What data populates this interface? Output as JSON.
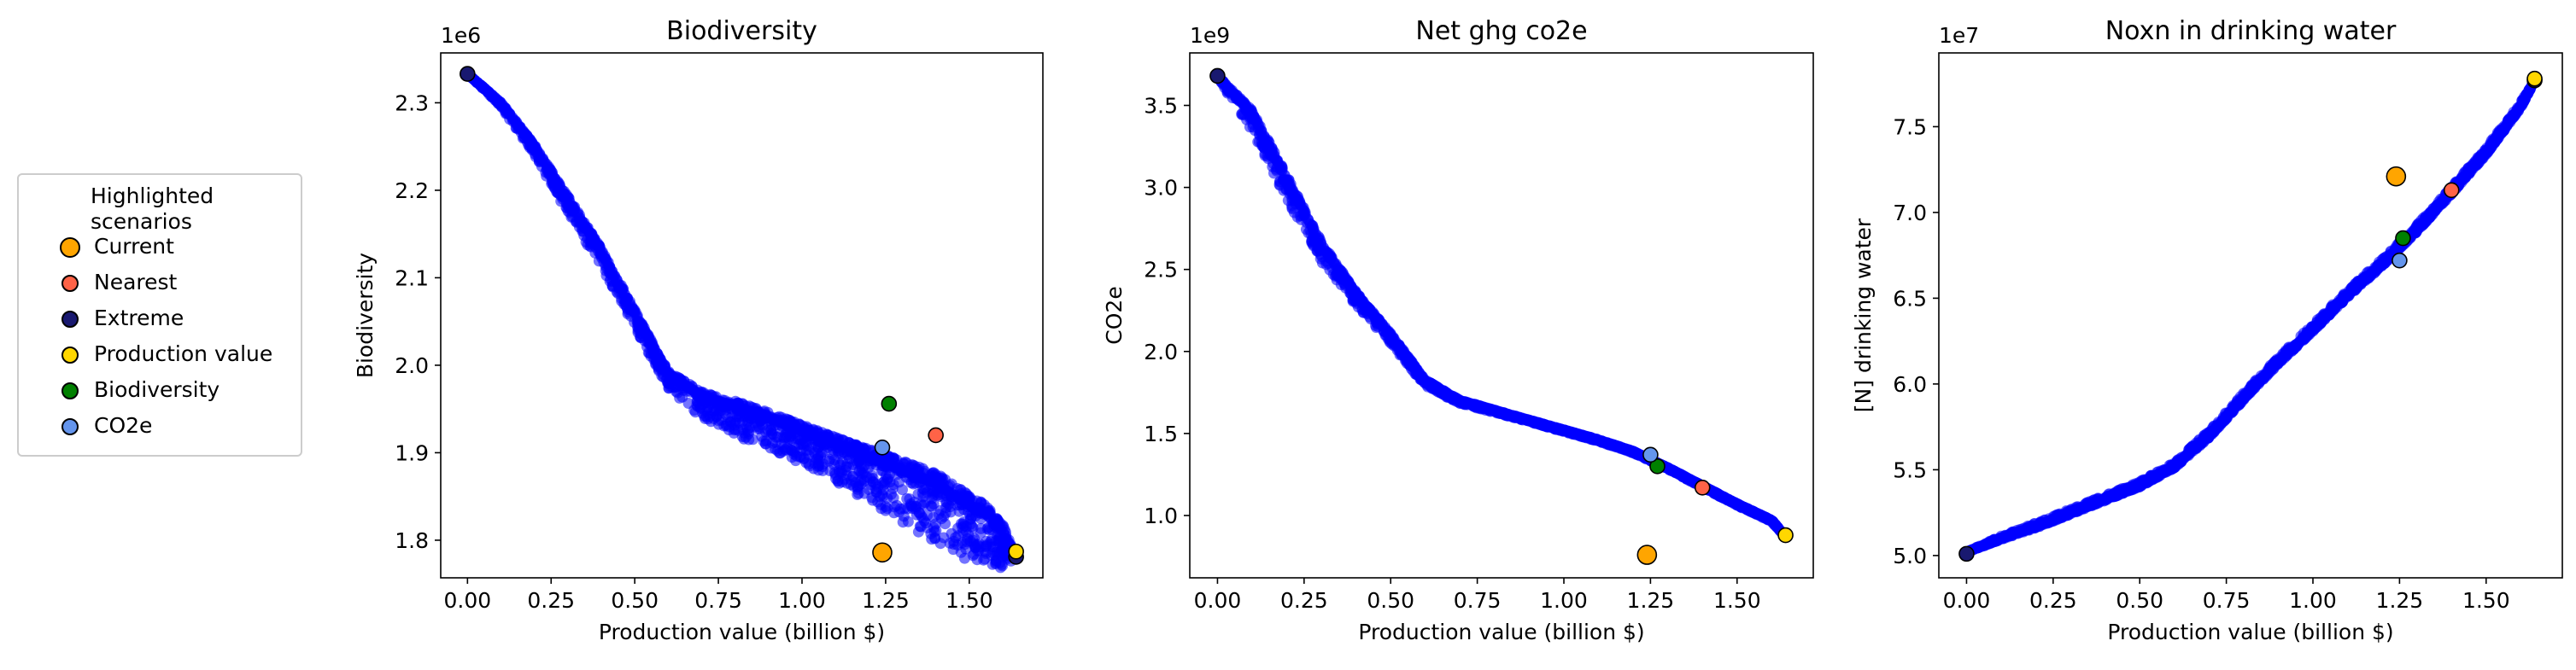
{
  "legend": {
    "title_line1": "Highlighted",
    "title_line2": "scenarios",
    "items": [
      {
        "label": "Current",
        "color": "#ffa500",
        "size": "large"
      },
      {
        "label": "Nearest",
        "color": "#ff6347",
        "size": "small"
      },
      {
        "label": "Extreme",
        "color": "#191970",
        "size": "small"
      },
      {
        "label": "Production value",
        "color": "#ffd700",
        "size": "small"
      },
      {
        "label": "Biodiversity",
        "color": "#008000",
        "size": "small"
      },
      {
        "label": "CO2e",
        "color": "#6495ed",
        "size": "small"
      }
    ]
  },
  "cloud_color": "#0000ff",
  "chart_data": [
    {
      "type": "scatter",
      "title": "Biodiversity",
      "xlabel": "Production value (billion $)",
      "ylabel": "Biodiversity",
      "offset_label": "1e6",
      "xlim": [
        -0.08,
        1.72
      ],
      "ylim": [
        1.757,
        2.357
      ],
      "xticks": [
        0.0,
        0.25,
        0.5,
        0.75,
        1.0,
        1.25,
        1.5
      ],
      "xtick_labels": [
        "0.00",
        "0.25",
        "0.50",
        "0.75",
        "1.00",
        "1.25",
        "1.50"
      ],
      "yticks": [
        1.8,
        1.9,
        2.0,
        2.1,
        2.2,
        2.3
      ],
      "ytick_labels": [
        "1.8",
        "1.9",
        "2.0",
        "2.1",
        "2.2",
        "2.3"
      ],
      "frontier": [
        [
          0.0,
          2.333
        ],
        [
          0.1,
          2.3
        ],
        [
          0.2,
          2.25
        ],
        [
          0.3,
          2.19
        ],
        [
          0.4,
          2.13
        ],
        [
          0.5,
          2.06
        ],
        [
          0.6,
          1.99
        ],
        [
          0.7,
          1.965
        ],
        [
          0.8,
          1.953
        ],
        [
          0.9,
          1.94
        ],
        [
          1.0,
          1.925
        ],
        [
          1.1,
          1.91
        ],
        [
          1.2,
          1.895
        ],
        [
          1.3,
          1.88
        ],
        [
          1.4,
          1.865
        ],
        [
          1.5,
          1.84
        ],
        [
          1.55,
          1.83
        ],
        [
          1.6,
          1.81
        ],
        [
          1.64,
          1.78
        ]
      ],
      "band": [
        0.0,
        0.005,
        0.012,
        0.02,
        0.02,
        0.02,
        0.02,
        0.03,
        0.04,
        0.04,
        0.045,
        0.05,
        0.06,
        0.07,
        0.08,
        0.075,
        0.07,
        0.05,
        0.0
      ],
      "highlights": [
        {
          "label": "Current",
          "x": 1.24,
          "y": 1.786
        },
        {
          "label": "Nearest",
          "x": 1.4,
          "y": 1.92
        },
        {
          "label": "Extreme",
          "x": 0.0,
          "y": 2.333
        },
        {
          "label": "Extreme",
          "x": 1.64,
          "y": 1.781
        },
        {
          "label": "Production value",
          "x": 1.64,
          "y": 1.787
        },
        {
          "label": "Biodiversity",
          "x": 1.26,
          "y": 1.956
        },
        {
          "label": "CO2e",
          "x": 1.24,
          "y": 1.906
        }
      ]
    },
    {
      "type": "scatter",
      "title": "Net ghg co2e",
      "xlabel": "Production value (billion $)",
      "ylabel": "CO2e",
      "offset_label": "1e9",
      "xlim": [
        -0.08,
        1.72
      ],
      "ylim": [
        0.62,
        3.82
      ],
      "xticks": [
        0.0,
        0.25,
        0.5,
        0.75,
        1.0,
        1.25,
        1.5
      ],
      "xtick_labels": [
        "0.00",
        "0.25",
        "0.50",
        "0.75",
        "1.00",
        "1.25",
        "1.50"
      ],
      "yticks": [
        1.0,
        1.5,
        2.0,
        2.5,
        3.0,
        3.5
      ],
      "ytick_labels": [
        "1.0",
        "1.5",
        "2.0",
        "2.5",
        "3.0",
        "3.5"
      ],
      "frontier": [
        [
          0.0,
          3.68
        ],
        [
          0.1,
          3.45
        ],
        [
          0.2,
          3.05
        ],
        [
          0.3,
          2.65
        ],
        [
          0.4,
          2.35
        ],
        [
          0.5,
          2.1
        ],
        [
          0.6,
          1.82
        ],
        [
          0.7,
          1.7
        ],
        [
          0.8,
          1.64
        ],
        [
          0.9,
          1.58
        ],
        [
          1.0,
          1.52
        ],
        [
          1.1,
          1.46
        ],
        [
          1.2,
          1.39
        ],
        [
          1.3,
          1.29
        ],
        [
          1.4,
          1.18
        ],
        [
          1.5,
          1.07
        ],
        [
          1.6,
          0.97
        ],
        [
          1.64,
          0.87
        ]
      ],
      "band": [
        0.02,
        0.12,
        0.15,
        0.12,
        0.08,
        0.06,
        0.04,
        0.02,
        0.015,
        0.01,
        0.01,
        0.01,
        0.01,
        0.01,
        0.01,
        0.01,
        0.01,
        0.0
      ],
      "highlights": [
        {
          "label": "Current",
          "x": 1.24,
          "y": 0.76
        },
        {
          "label": "Nearest",
          "x": 1.4,
          "y": 1.17
        },
        {
          "label": "Extreme",
          "x": 0.0,
          "y": 3.68
        },
        {
          "label": "Production value",
          "x": 1.64,
          "y": 0.88
        },
        {
          "label": "Biodiversity",
          "x": 1.27,
          "y": 1.3
        },
        {
          "label": "CO2e",
          "x": 1.25,
          "y": 1.37
        }
      ]
    },
    {
      "type": "scatter",
      "title": "Noxn in drinking water",
      "xlabel": "Production value (billion $)",
      "ylabel": "[N] drinking water",
      "offset_label": "1e7",
      "xlim": [
        -0.08,
        1.72
      ],
      "ylim": [
        4.87,
        7.93
      ],
      "xticks": [
        0.0,
        0.25,
        0.5,
        0.75,
        1.0,
        1.25,
        1.5
      ],
      "xtick_labels": [
        "0.00",
        "0.25",
        "0.50",
        "0.75",
        "1.00",
        "1.25",
        "1.50"
      ],
      "yticks": [
        5.0,
        5.5,
        6.0,
        6.5,
        7.0,
        7.5
      ],
      "ytick_labels": [
        "5.0",
        "5.5",
        "6.0",
        "6.5",
        "7.0",
        "7.5"
      ],
      "frontier": [
        [
          0.0,
          5.02
        ],
        [
          0.1,
          5.1
        ],
        [
          0.2,
          5.17
        ],
        [
          0.3,
          5.25
        ],
        [
          0.4,
          5.33
        ],
        [
          0.5,
          5.41
        ],
        [
          0.6,
          5.52
        ],
        [
          0.7,
          5.7
        ],
        [
          0.8,
          5.92
        ],
        [
          0.9,
          6.13
        ],
        [
          1.0,
          6.32
        ],
        [
          1.1,
          6.52
        ],
        [
          1.2,
          6.7
        ],
        [
          1.3,
          6.9
        ],
        [
          1.4,
          7.12
        ],
        [
          1.5,
          7.35
        ],
        [
          1.6,
          7.62
        ],
        [
          1.64,
          7.77
        ]
      ],
      "band": [
        0.0,
        0.02,
        0.03,
        0.03,
        0.03,
        0.03,
        0.03,
        0.04,
        0.04,
        0.04,
        0.04,
        0.04,
        0.04,
        0.04,
        0.04,
        0.04,
        0.03,
        0.0
      ],
      "highlights": [
        {
          "label": "Current",
          "x": 1.24,
          "y": 7.21
        },
        {
          "label": "Nearest",
          "x": 1.4,
          "y": 7.13
        },
        {
          "label": "Extreme",
          "x": 0.0,
          "y": 5.01
        },
        {
          "label": "Extreme",
          "x": 1.64,
          "y": 7.77
        },
        {
          "label": "Production value",
          "x": 1.64,
          "y": 7.78
        },
        {
          "label": "Biodiversity",
          "x": 1.26,
          "y": 6.85
        },
        {
          "label": "CO2e",
          "x": 1.25,
          "y": 6.72
        }
      ]
    }
  ]
}
